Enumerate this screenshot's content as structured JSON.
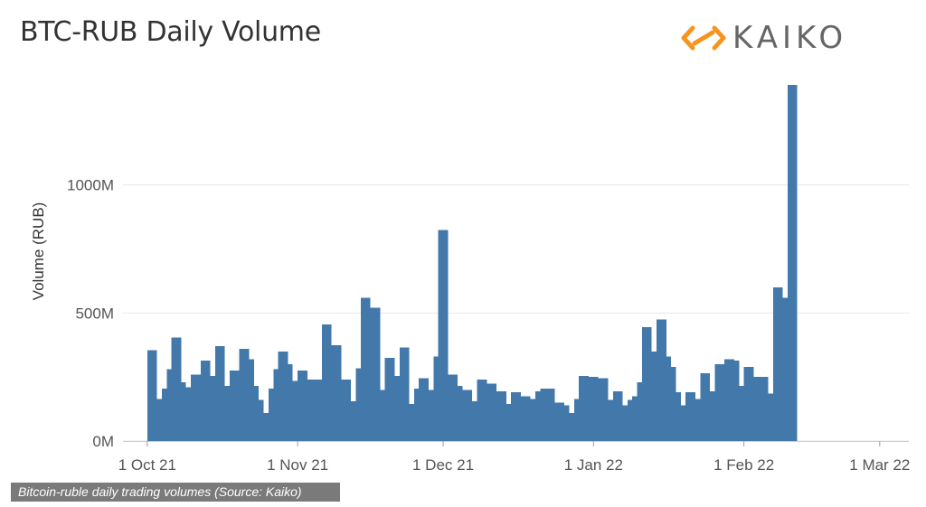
{
  "title": "BTC-RUB Daily Volume",
  "logo": {
    "text": "KAIKO",
    "icon": "kaiko-logo-icon",
    "icon_color": "#f7941d"
  },
  "caption": "Bitcoin-ruble daily trading volumes (Source: Kaiko)",
  "colors": {
    "bar": "#4378aa",
    "grid": "#e6e6e6",
    "axis": "#cfcfcf"
  },
  "chart_data": {
    "type": "bar",
    "title": "BTC-RUB Daily Volume",
    "xlabel": "",
    "ylabel": "Volume (RUB)",
    "ylim": [
      0,
      1440
    ],
    "x_range": [
      "2021-09-26",
      "2022-03-07"
    ],
    "y_ticks": [
      {
        "value": 0,
        "label": "0M"
      },
      {
        "value": 500,
        "label": "500M"
      },
      {
        "value": 1000,
        "label": "1000M"
      }
    ],
    "x_ticks": [
      {
        "date": "2021-10-01",
        "label": "1 Oct 21"
      },
      {
        "date": "2021-11-01",
        "label": "1 Nov 21"
      },
      {
        "date": "2021-12-01",
        "label": "1 Dec 21"
      },
      {
        "date": "2022-01-01",
        "label": "1 Jan 22"
      },
      {
        "date": "2022-02-01",
        "label": "1 Feb 22"
      },
      {
        "date": "2022-03-01",
        "label": "1 Mar 22"
      }
    ],
    "grid": true,
    "series": [
      {
        "start_date": "2021-10-01",
        "values": [
          355,
          355,
          165,
          205,
          280,
          405,
          405,
          230,
          210,
          260,
          260,
          315,
          315,
          255,
          370,
          370,
          215,
          275,
          275,
          360,
          360,
          320,
          215,
          160,
          110,
          205,
          280,
          350,
          350,
          300,
          235,
          275,
          275,
          240,
          240,
          240,
          455,
          455,
          375,
          375,
          240,
          240,
          155,
          285,
          560,
          560,
          520,
          520,
          200,
          325,
          325,
          255,
          365,
          365,
          145,
          205,
          245,
          245,
          200,
          330,
          825,
          825,
          260,
          260,
          215,
          200,
          200,
          155,
          240,
          240,
          225,
          225,
          195,
          195,
          145,
          190,
          190,
          175,
          175,
          165,
          195,
          205,
          205,
          205,
          150,
          150,
          140,
          110,
          165,
          255,
          255,
          250,
          250,
          245,
          245,
          160,
          195,
          195,
          140,
          160,
          175,
          230,
          445,
          445,
          350,
          475,
          475,
          330,
          290,
          190,
          140,
          190,
          190,
          165,
          265,
          265,
          195,
          300,
          300,
          320,
          320,
          315,
          215,
          290,
          290,
          250,
          250,
          250,
          185,
          600,
          600,
          560,
          1390,
          1390
        ]
      }
    ]
  }
}
